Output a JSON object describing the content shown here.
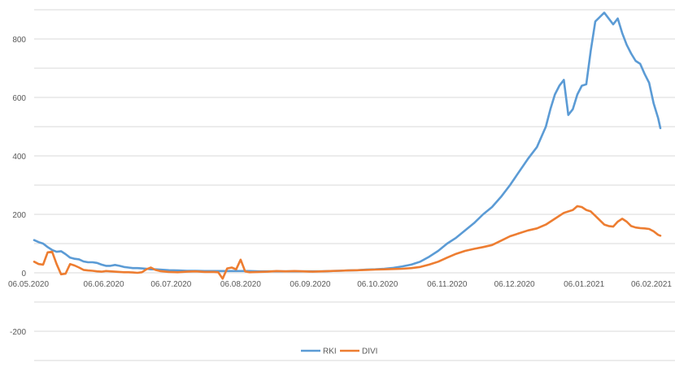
{
  "chart_data": {
    "type": "line",
    "title": "",
    "xlabel": "",
    "ylabel": "",
    "x_start": "06.05.2020",
    "x_end": "09.02.2021",
    "ylim": [
      -300,
      900
    ],
    "y_ticks": [
      -200,
      0,
      200,
      400,
      600,
      800
    ],
    "x_ticks": [
      "06.05.2020",
      "06.06.2020",
      "06.07.2020",
      "06.08.2020",
      "06.09.2020",
      "06.10.2020",
      "06.11.2020",
      "06.12.2020",
      "06.01.2021",
      "06.02.2021"
    ],
    "grid": "horizontal",
    "legend_position": "bottom",
    "series": [
      {
        "name": "RKI",
        "color": "#5b9bd5",
        "points": [
          [
            "06.05.2020",
            112
          ],
          [
            "08.05.2020",
            105
          ],
          [
            "10.05.2020",
            100
          ],
          [
            "12.05.2020",
            88
          ],
          [
            "14.05.2020",
            78
          ],
          [
            "16.05.2020",
            72
          ],
          [
            "18.05.2020",
            74
          ],
          [
            "20.05.2020",
            64
          ],
          [
            "22.05.2020",
            52
          ],
          [
            "24.05.2020",
            48
          ],
          [
            "26.05.2020",
            46
          ],
          [
            "28.05.2020",
            39
          ],
          [
            "30.05.2020",
            36
          ],
          [
            "01.06.2020",
            36
          ],
          [
            "03.06.2020",
            34
          ],
          [
            "05.06.2020",
            28
          ],
          [
            "07.06.2020",
            24
          ],
          [
            "09.06.2020",
            24
          ],
          [
            "11.06.2020",
            27
          ],
          [
            "13.06.2020",
            24
          ],
          [
            "15.06.2020",
            20
          ],
          [
            "17.06.2020",
            18
          ],
          [
            "19.06.2020",
            16
          ],
          [
            "21.06.2020",
            16
          ],
          [
            "23.06.2020",
            15
          ],
          [
            "25.06.2020",
            14
          ],
          [
            "27.06.2020",
            12
          ],
          [
            "29.06.2020",
            12
          ],
          [
            "01.07.2020",
            11
          ],
          [
            "05.07.2020",
            9
          ],
          [
            "09.07.2020",
            8
          ],
          [
            "13.07.2020",
            7
          ],
          [
            "17.07.2020",
            7
          ],
          [
            "21.07.2020",
            6
          ],
          [
            "25.07.2020",
            6
          ],
          [
            "29.07.2020",
            6
          ],
          [
            "02.08.2020",
            6
          ],
          [
            "06.08.2020",
            6
          ],
          [
            "10.08.2020",
            6
          ],
          [
            "14.08.2020",
            5
          ],
          [
            "18.08.2020",
            5
          ],
          [
            "22.08.2020",
            5
          ],
          [
            "26.08.2020",
            5
          ],
          [
            "30.08.2020",
            5
          ],
          [
            "03.09.2020",
            5
          ],
          [
            "07.09.2020",
            5
          ],
          [
            "11.09.2020",
            5
          ],
          [
            "15.09.2020",
            6
          ],
          [
            "19.09.2020",
            7
          ],
          [
            "23.09.2020",
            8
          ],
          [
            "27.09.2020",
            9
          ],
          [
            "01.10.2020",
            11
          ],
          [
            "05.10.2020",
            12
          ],
          [
            "09.10.2020",
            14
          ],
          [
            "13.10.2020",
            17
          ],
          [
            "17.10.2020",
            22
          ],
          [
            "21.10.2020",
            28
          ],
          [
            "25.10.2020",
            38
          ],
          [
            "29.10.2020",
            55
          ],
          [
            "02.11.2020",
            75
          ],
          [
            "06.11.2020",
            100
          ],
          [
            "10.11.2020",
            120
          ],
          [
            "14.11.2020",
            145
          ],
          [
            "18.11.2020",
            170
          ],
          [
            "22.11.2020",
            200
          ],
          [
            "26.11.2020",
            225
          ],
          [
            "30.11.2020",
            260
          ],
          [
            "04.12.2020",
            300
          ],
          [
            "08.12.2020",
            345
          ],
          [
            "12.12.2020",
            390
          ],
          [
            "16.12.2020",
            430
          ],
          [
            "20.12.2020",
            500
          ],
          [
            "22.12.2020",
            560
          ],
          [
            "24.12.2020",
            610
          ],
          [
            "26.12.2020",
            640
          ],
          [
            "28.12.2020",
            660
          ],
          [
            "30.12.2020",
            540
          ],
          [
            "01.01.2021",
            560
          ],
          [
            "03.01.2021",
            610
          ],
          [
            "05.01.2021",
            640
          ],
          [
            "07.01.2021",
            645
          ],
          [
            "09.01.2021",
            760
          ],
          [
            "11.01.2021",
            860
          ],
          [
            "13.01.2021",
            875
          ],
          [
            "15.01.2021",
            890
          ],
          [
            "17.01.2021",
            870
          ],
          [
            "19.01.2021",
            850
          ],
          [
            "21.01.2021",
            870
          ],
          [
            "23.01.2021",
            820
          ],
          [
            "25.01.2021",
            780
          ],
          [
            "27.01.2021",
            750
          ],
          [
            "29.01.2021",
            725
          ],
          [
            "31.01.2021",
            715
          ],
          [
            "02.02.2021",
            680
          ],
          [
            "04.02.2021",
            650
          ],
          [
            "06.02.2021",
            580
          ],
          [
            "08.02.2021",
            530
          ],
          [
            "09.02.2021",
            495
          ]
        ]
      },
      {
        "name": "DIVI",
        "color": "#ed7d31",
        "points": [
          [
            "06.05.2020",
            38
          ],
          [
            "08.05.2020",
            30
          ],
          [
            "10.05.2020",
            28
          ],
          [
            "12.05.2020",
            70
          ],
          [
            "14.05.2020",
            72
          ],
          [
            "16.05.2020",
            30
          ],
          [
            "18.05.2020",
            -5
          ],
          [
            "20.05.2020",
            -3
          ],
          [
            "22.05.2020",
            30
          ],
          [
            "24.05.2020",
            25
          ],
          [
            "26.05.2020",
            18
          ],
          [
            "28.05.2020",
            10
          ],
          [
            "30.05.2020",
            8
          ],
          [
            "01.06.2020",
            7
          ],
          [
            "03.06.2020",
            5
          ],
          [
            "05.06.2020",
            4
          ],
          [
            "07.06.2020",
            6
          ],
          [
            "09.06.2020",
            5
          ],
          [
            "11.06.2020",
            4
          ],
          [
            "13.06.2020",
            3
          ],
          [
            "15.06.2020",
            2
          ],
          [
            "17.06.2020",
            2
          ],
          [
            "19.06.2020",
            1
          ],
          [
            "21.06.2020",
            0
          ],
          [
            "23.06.2020",
            2
          ],
          [
            "25.06.2020",
            12
          ],
          [
            "27.06.2020",
            18
          ],
          [
            "29.06.2020",
            10
          ],
          [
            "01.07.2020",
            6
          ],
          [
            "05.07.2020",
            3
          ],
          [
            "09.07.2020",
            2
          ],
          [
            "13.07.2020",
            4
          ],
          [
            "17.07.2020",
            5
          ],
          [
            "21.07.2020",
            3
          ],
          [
            "25.07.2020",
            3
          ],
          [
            "27.07.2020",
            2
          ],
          [
            "29.07.2020",
            -20
          ],
          [
            "31.07.2020",
            15
          ],
          [
            "02.08.2020",
            18
          ],
          [
            "04.08.2020",
            12
          ],
          [
            "06.08.2020",
            45
          ],
          [
            "08.08.2020",
            5
          ],
          [
            "10.08.2020",
            2
          ],
          [
            "14.08.2020",
            3
          ],
          [
            "18.08.2020",
            4
          ],
          [
            "22.08.2020",
            6
          ],
          [
            "26.08.2020",
            5
          ],
          [
            "30.08.2020",
            6
          ],
          [
            "03.09.2020",
            5
          ],
          [
            "07.09.2020",
            4
          ],
          [
            "11.09.2020",
            5
          ],
          [
            "15.09.2020",
            6
          ],
          [
            "19.09.2020",
            7
          ],
          [
            "23.09.2020",
            8
          ],
          [
            "27.09.2020",
            9
          ],
          [
            "01.10.2020",
            10
          ],
          [
            "05.10.2020",
            11
          ],
          [
            "09.10.2020",
            12
          ],
          [
            "13.10.2020",
            13
          ],
          [
            "17.10.2020",
            14
          ],
          [
            "21.10.2020",
            16
          ],
          [
            "25.10.2020",
            20
          ],
          [
            "29.10.2020",
            28
          ],
          [
            "02.11.2020",
            38
          ],
          [
            "06.11.2020",
            52
          ],
          [
            "10.11.2020",
            65
          ],
          [
            "14.11.2020",
            75
          ],
          [
            "18.11.2020",
            82
          ],
          [
            "22.11.2020",
            88
          ],
          [
            "26.11.2020",
            95
          ],
          [
            "30.11.2020",
            110
          ],
          [
            "04.12.2020",
            125
          ],
          [
            "08.12.2020",
            135
          ],
          [
            "12.12.2020",
            145
          ],
          [
            "16.12.2020",
            152
          ],
          [
            "20.12.2020",
            165
          ],
          [
            "24.12.2020",
            185
          ],
          [
            "28.12.2020",
            205
          ],
          [
            "01.01.2021",
            215
          ],
          [
            "03.01.2021",
            228
          ],
          [
            "05.01.2021",
            225
          ],
          [
            "07.01.2021",
            215
          ],
          [
            "09.01.2021",
            210
          ],
          [
            "11.01.2021",
            195
          ],
          [
            "13.01.2021",
            180
          ],
          [
            "15.01.2021",
            165
          ],
          [
            "17.01.2021",
            160
          ],
          [
            "19.01.2021",
            158
          ],
          [
            "21.01.2021",
            175
          ],
          [
            "23.01.2021",
            185
          ],
          [
            "25.01.2021",
            175
          ],
          [
            "27.01.2021",
            160
          ],
          [
            "29.01.2021",
            155
          ],
          [
            "31.01.2021",
            153
          ],
          [
            "02.02.2021",
            152
          ],
          [
            "04.02.2021",
            150
          ],
          [
            "06.02.2021",
            142
          ],
          [
            "08.02.2021",
            130
          ],
          [
            "09.02.2021",
            127
          ]
        ]
      }
    ]
  }
}
